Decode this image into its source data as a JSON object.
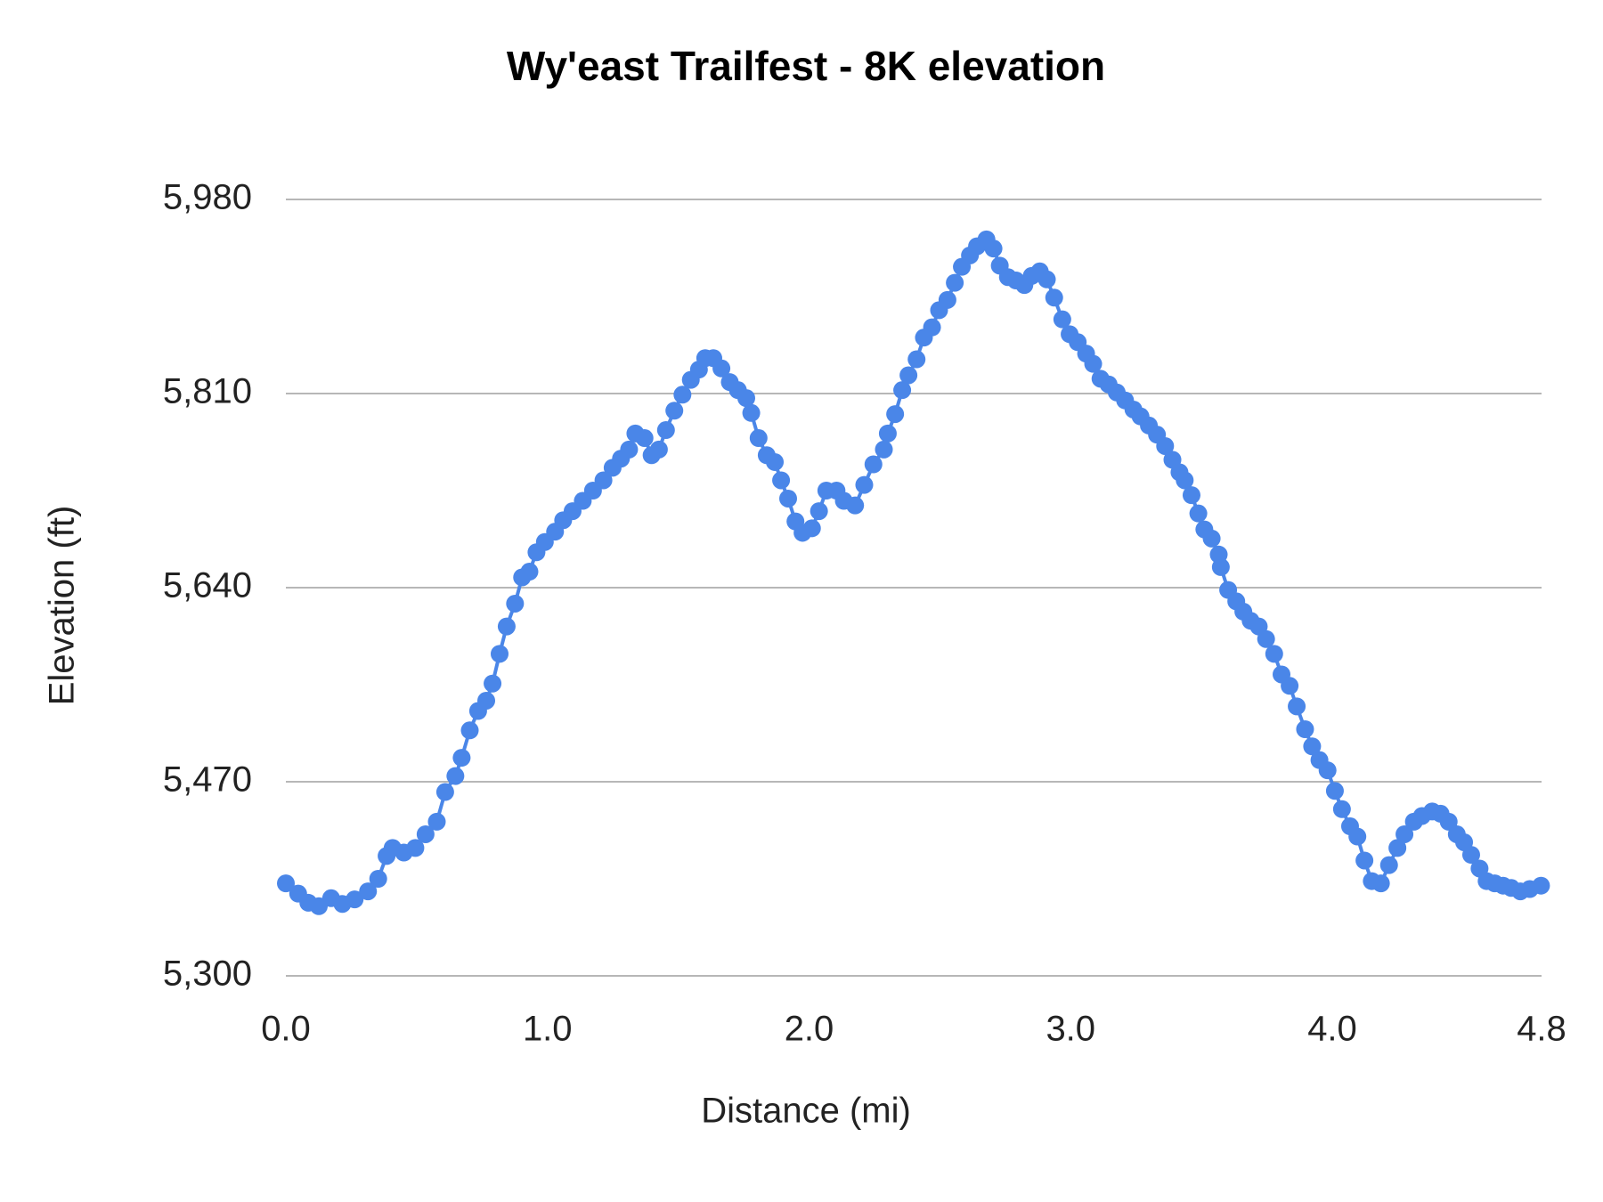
{
  "chart_data": {
    "type": "line",
    "title": "Wy'east Trailfest - 8K elevation",
    "x_label": "Distance (mi)",
    "y_label": "Elevation (ft)",
    "color": "#4a86e8",
    "markers": true,
    "grid": true,
    "xlim": [
      0,
      4.8
    ],
    "ylim": [
      5300,
      5980
    ],
    "xticks": [
      {
        "value": 0,
        "label": "0.0"
      },
      {
        "value": 1,
        "label": "1.0"
      },
      {
        "value": 2,
        "label": "2.0"
      },
      {
        "value": 3,
        "label": "3.0"
      },
      {
        "value": 4,
        "label": "4.0"
      },
      4.8
    ],
    "yticks": [
      {
        "value": 5300,
        "label": "5,300"
      },
      {
        "value": 5470,
        "label": "5,470"
      },
      {
        "value": 5640,
        "label": "5,640"
      },
      {
        "value": 5810,
        "label": "5,810"
      },
      {
        "value": 5980,
        "label": "5,980"
      }
    ],
    "x": [
      0.0,
      0.047,
      0.086,
      0.126,
      0.173,
      0.216,
      0.263,
      0.314,
      0.353,
      0.385,
      0.408,
      0.451,
      0.495,
      0.534,
      0.577,
      0.609,
      0.648,
      0.672,
      0.703,
      0.735,
      0.766,
      0.79,
      0.817,
      0.844,
      0.876,
      0.903,
      0.931,
      0.958,
      0.99,
      1.029,
      1.06,
      1.096,
      1.135,
      1.174,
      1.214,
      1.249,
      1.281,
      1.312,
      1.336,
      1.371,
      1.398,
      1.426,
      1.453,
      1.485,
      1.516,
      1.548,
      1.579,
      1.603,
      1.634,
      1.665,
      1.697,
      1.728,
      1.76,
      1.779,
      1.807,
      1.838,
      1.869,
      1.893,
      1.92,
      1.948,
      1.975,
      2.011,
      2.038,
      2.066,
      2.105,
      2.133,
      2.176,
      2.211,
      2.246,
      2.286,
      2.301,
      2.329,
      2.356,
      2.38,
      2.411,
      2.439,
      2.47,
      2.497,
      2.529,
      2.557,
      2.584,
      2.615,
      2.642,
      2.678,
      2.705,
      2.729,
      2.76,
      2.791,
      2.823,
      2.851,
      2.882,
      2.909,
      2.937,
      2.968,
      2.996,
      3.027,
      3.059,
      3.086,
      3.114,
      3.145,
      3.176,
      3.208,
      3.24,
      3.267,
      3.299,
      3.33,
      3.361,
      3.389,
      3.416,
      3.436,
      3.462,
      3.488,
      3.511,
      3.539,
      3.566,
      3.574,
      3.602,
      3.633,
      3.66,
      3.688,
      3.719,
      3.747,
      3.778,
      3.806,
      3.837,
      3.864,
      3.896,
      3.923,
      3.951,
      3.982,
      4.01,
      4.037,
      4.068,
      4.096,
      4.123,
      4.151,
      4.186,
      4.217,
      4.249,
      4.276,
      4.312,
      4.343,
      4.382,
      4.414,
      4.445,
      4.476,
      4.504,
      4.531,
      4.563,
      4.59,
      4.621,
      4.653,
      4.684,
      4.719,
      4.755,
      4.798
    ],
    "values": [
      5381,
      5372,
      5364,
      5361,
      5368,
      5363,
      5367,
      5374,
      5385,
      5405,
      5412,
      5408,
      5412,
      5424,
      5435,
      5461,
      5475,
      5491,
      5515,
      5532,
      5541,
      5556,
      5582,
      5606,
      5626,
      5649,
      5654,
      5671,
      5680,
      5689,
      5699,
      5707,
      5716,
      5725,
      5734,
      5745,
      5753,
      5761,
      5775,
      5771,
      5756,
      5761,
      5778,
      5795,
      5809,
      5822,
      5831,
      5841,
      5841,
      5832,
      5820,
      5813,
      5806,
      5793,
      5771,
      5756,
      5750,
      5734,
      5718,
      5698,
      5688,
      5692,
      5707,
      5725,
      5725,
      5716,
      5712,
      5730,
      5748,
      5761,
      5775,
      5792,
      5813,
      5826,
      5840,
      5859,
      5868,
      5883,
      5892,
      5907,
      5921,
      5931,
      5939,
      5945,
      5937,
      5922,
      5912,
      5909,
      5905,
      5913,
      5917,
      5910,
      5894,
      5875,
      5862,
      5855,
      5845,
      5836,
      5823,
      5818,
      5811,
      5804,
      5796,
      5790,
      5782,
      5774,
      5764,
      5752,
      5741,
      5734,
      5721,
      5705,
      5691,
      5683,
      5669,
      5658,
      5638,
      5628,
      5619,
      5611,
      5606,
      5595,
      5582,
      5564,
      5554,
      5536,
      5516,
      5501,
      5489,
      5480,
      5462,
      5446,
      5431,
      5422,
      5401,
      5383,
      5381,
      5397,
      5412,
      5424,
      5435,
      5440,
      5444,
      5442,
      5435,
      5424,
      5417,
      5406,
      5394,
      5383,
      5381,
      5379,
      5377,
      5374,
      5376,
      5379
    ]
  }
}
